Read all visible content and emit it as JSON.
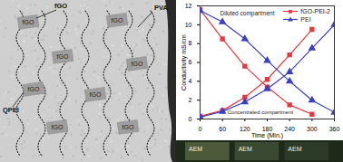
{
  "chart_data": {
    "type": "line",
    "x_label": "Time (Min.)",
    "y_label": "Conductivity mS/cm",
    "xlim": [
      0,
      360
    ],
    "xticks": [
      0,
      60,
      120,
      180,
      240,
      300,
      360
    ],
    "ylim": [
      0,
      12
    ],
    "yticks": [
      0,
      2,
      4,
      6,
      8,
      10,
      12
    ],
    "legend": "top-right",
    "annotations": [
      "Diluted compartment",
      "Concentrated compartment"
    ],
    "series": [
      {
        "name": "fGO-PEI-2",
        "color": "#e8383d",
        "marker": "square",
        "x": [
          0,
          60,
          120,
          180,
          240,
          300
        ],
        "values": [
          11.6,
          8.5,
          5.6,
          3.4,
          1.5,
          0.5
        ]
      },
      {
        "name": "fGO-PEI-2",
        "color": "#e8383d",
        "marker": "square",
        "x": [
          0,
          60,
          120,
          180,
          240,
          300
        ],
        "values": [
          0.3,
          0.9,
          2.3,
          4.2,
          6.8,
          9.5
        ]
      },
      {
        "name": "PEI",
        "color": "#3b3fc4",
        "marker": "triangle",
        "x": [
          0,
          60,
          120,
          180,
          240,
          300,
          360
        ],
        "values": [
          11.5,
          10.3,
          8.5,
          6.2,
          4.0,
          2.0,
          0.7
        ]
      },
      {
        "name": "PEI",
        "color": "#3b3fc4",
        "marker": "triangle",
        "x": [
          0,
          60,
          120,
          180,
          240,
          300,
          360
        ],
        "values": [
          0.2,
          0.8,
          1.8,
          3.2,
          5.0,
          7.5,
          10.0
        ]
      }
    ]
  },
  "image_panel": {
    "callouts": [
      "fGO",
      "PVA",
      "QPEI"
    ],
    "particle_label": "fGO"
  },
  "photo_strip": {
    "labels": [
      "AEM",
      "AEM",
      "AEM"
    ]
  }
}
